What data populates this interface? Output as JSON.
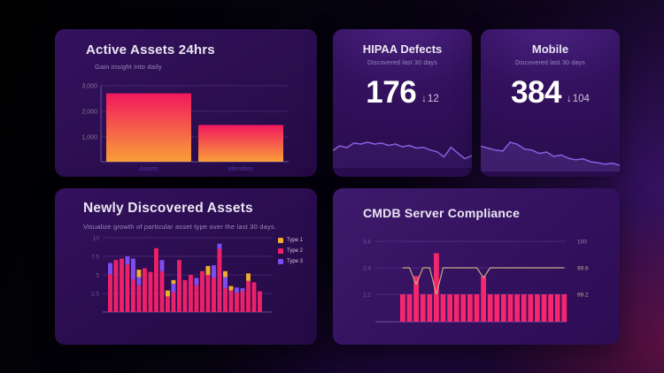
{
  "cards": {
    "active_assets": {
      "title": "Active Assets 24hrs",
      "subtitle": "Gain insight into daily"
    },
    "hipaa": {
      "title": "HIPAA Defects",
      "subtitle": "Discovered last 30 days",
      "metric": "176",
      "delta": "12",
      "delta_arrow": "↓"
    },
    "mobile": {
      "title": "Mobile",
      "subtitle": "Discovered last 30 days",
      "metric": "384",
      "delta": "104",
      "delta_arrow": "↓"
    },
    "newly": {
      "title": "Newly Discovered Assets",
      "subtitle": "Visualize growth of particular asset type over the last 30 days.",
      "legend": [
        {
          "label": "Type 1",
          "color": "#f2ae2a"
        },
        {
          "label": "Type 2",
          "color": "#ea2169"
        },
        {
          "label": "Type 3",
          "color": "#7e4cf0"
        }
      ]
    },
    "cmdb": {
      "title": "CMDB Server Compliance"
    }
  },
  "chart_data": [
    {
      "id": "active-assets",
      "type": "bar",
      "title": "Active Assets 24hrs",
      "categories": [
        "Assets",
        "Identities"
      ],
      "values": [
        2700,
        1450
      ],
      "ymax": 3000,
      "yticks": [
        "3,000",
        "2,000",
        "1,000"
      ],
      "gradient": [
        "#f1185e",
        "#f99f38"
      ],
      "axis_color": "#8b7596",
      "category_color": "#4c39a8",
      "grid": true
    },
    {
      "id": "hipaa-trend",
      "type": "line",
      "title": "HIPAA Defects trend",
      "values": [
        38,
        48,
        44,
        54,
        52,
        56,
        52,
        54,
        49,
        52,
        46,
        49,
        43,
        45,
        39,
        35,
        24,
        45,
        32,
        20,
        27
      ],
      "color": "#8a5fe0",
      "fill": "rgba(134,95,224,0.10)"
    },
    {
      "id": "mobile-trend",
      "type": "area",
      "title": "Mobile trend",
      "values": [
        52,
        48,
        44,
        42,
        60,
        56,
        46,
        44,
        37,
        40,
        31,
        34,
        27,
        24,
        26,
        20,
        18,
        15,
        17,
        13
      ],
      "color": "#8a5fe0",
      "fill": "rgba(134,95,224,0.22)"
    },
    {
      "id": "newly-assets",
      "type": "stacked-bar",
      "title": "Newly Discovered Assets",
      "ymax": 10,
      "yticks": [
        "10",
        "7.5",
        "5",
        "2.5"
      ],
      "series_order": [
        "Type 2",
        "Type 3",
        "Type 1"
      ],
      "colors": [
        "#ea2169",
        "#7e4cf0",
        "#f2ae2a"
      ],
      "bars": [
        [
          5.1,
          1.5,
          0
        ],
        [
          7.0,
          0,
          0
        ],
        [
          7.2,
          0,
          0
        ],
        [
          6.4,
          1.1,
          0
        ],
        [
          4.4,
          2.8,
          0
        ],
        [
          3.6,
          1.1,
          1.0
        ],
        [
          5.9,
          0,
          0
        ],
        [
          5.4,
          0,
          0
        ],
        [
          8.6,
          0,
          0
        ],
        [
          5.5,
          1.5,
          0
        ],
        [
          2.1,
          0,
          0.8
        ],
        [
          2.7,
          1.1,
          0.5
        ],
        [
          7.0,
          0,
          0
        ],
        [
          4.3,
          0,
          0
        ],
        [
          5.0,
          0,
          0
        ],
        [
          3.6,
          1.0,
          0
        ],
        [
          5.5,
          0,
          0
        ],
        [
          5.0,
          0,
          1.2
        ],
        [
          4.6,
          1.7,
          0
        ],
        [
          8.5,
          0.7,
          0
        ],
        [
          3.2,
          1.5,
          0.8
        ],
        [
          2.9,
          0,
          0.6
        ],
        [
          2.6,
          0.7,
          0
        ],
        [
          2.8,
          0.4,
          0
        ],
        [
          4.2,
          0,
          1.0
        ],
        [
          4.0,
          0,
          0
        ],
        [
          2.8,
          0,
          0
        ]
      ],
      "axis_color": "#6c5898",
      "grid": true,
      "legend_position": "right"
    },
    {
      "id": "cmdb",
      "type": "bar-line",
      "title": "CMDB Server Compliance",
      "left_ticks": [
        "3.6",
        "2.4",
        "1.2"
      ],
      "left_max": 3.6,
      "right_ticks": [
        "100",
        "99.6",
        "99.2"
      ],
      "right_range": [
        99.2,
        100
      ],
      "bar_color": "#f5256e",
      "line_color": "#c3ab85",
      "bars": [
        1.2,
        1.2,
        2.0,
        1.2,
        1.2,
        3.0,
        1.2,
        1.2,
        1.2,
        1.2,
        1.2,
        1.2,
        2.0,
        1.2,
        1.2,
        1.2,
        1.2,
        1.2,
        1.2,
        1.2,
        1.2,
        1.2,
        1.2,
        1.2,
        1.2
      ],
      "line": [
        99.6,
        99.6,
        99.35,
        99.6,
        99.6,
        99.2,
        99.6,
        99.6,
        99.6,
        99.6,
        99.6,
        99.6,
        99.45,
        99.6,
        99.6,
        99.6,
        99.6,
        99.6,
        99.6,
        99.6,
        99.6,
        99.6,
        99.6,
        99.6,
        99.6
      ],
      "left_axis_color": "#6c5898",
      "right_axis_color": "#9b85a4",
      "grid": true
    }
  ]
}
